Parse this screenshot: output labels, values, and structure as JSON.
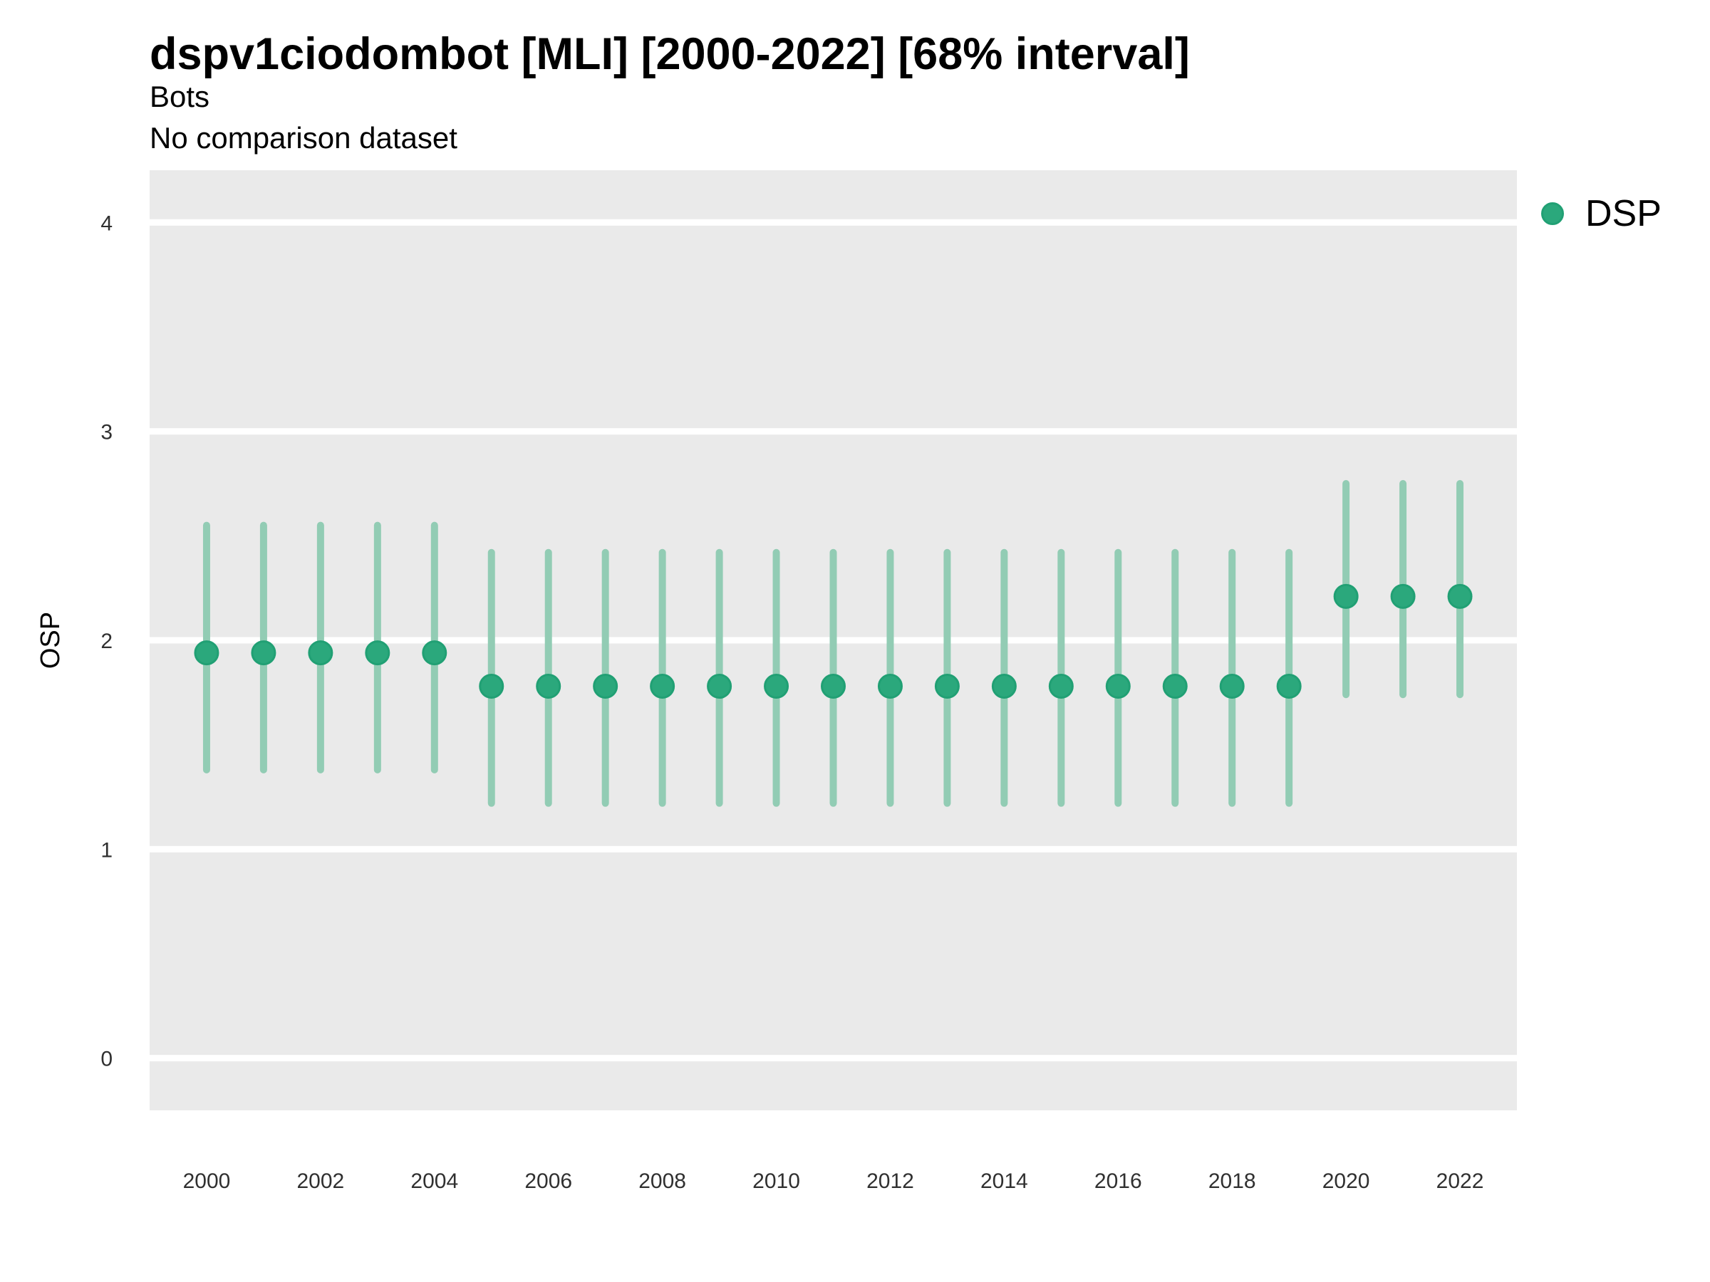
{
  "header": {
    "title": "dspv1ciodombot [MLI] [2000-2022] [68% interval]",
    "subtitle": "Bots",
    "caption": "No comparison dataset"
  },
  "legend": {
    "label": "DSP",
    "color": "#2BA87C"
  },
  "colors": {
    "point_fill": "#2BA87C",
    "point_stroke": "#21A074",
    "interval_line": "#92CCB4",
    "plot_background": "#EAEAEA",
    "gridline": "#FFFFFF",
    "tick_text": "#303030",
    "text": "#000000"
  },
  "chart_data": {
    "type": "scatter",
    "subtype": "pointrange",
    "title": "dspv1ciodombot [MLI] [2000-2022] [68% interval]",
    "subtitle": "Bots",
    "note": "No comparison dataset",
    "interval_label": "68% interval",
    "xlabel": "",
    "ylabel": "OSP",
    "ylim": [
      -0.25,
      4.25
    ],
    "yticks": [
      0,
      1,
      2,
      3,
      4
    ],
    "xticks": [
      "2000",
      "2002",
      "2004",
      "2006",
      "2008",
      "2010",
      "2012",
      "2014",
      "2016",
      "2018",
      "2020",
      "2022"
    ],
    "grid": "horizontal-major-white-on-gray",
    "legend_position": "right",
    "series": [
      {
        "name": "DSP",
        "points": [
          {
            "year": 2000,
            "value": 1.94,
            "lower": 1.38,
            "upper": 2.55
          },
          {
            "year": 2001,
            "value": 1.94,
            "lower": 1.38,
            "upper": 2.55
          },
          {
            "year": 2002,
            "value": 1.94,
            "lower": 1.38,
            "upper": 2.55
          },
          {
            "year": 2003,
            "value": 1.94,
            "lower": 1.38,
            "upper": 2.55
          },
          {
            "year": 2004,
            "value": 1.94,
            "lower": 1.38,
            "upper": 2.55
          },
          {
            "year": 2005,
            "value": 1.78,
            "lower": 1.22,
            "upper": 2.42
          },
          {
            "year": 2006,
            "value": 1.78,
            "lower": 1.22,
            "upper": 2.42
          },
          {
            "year": 2007,
            "value": 1.78,
            "lower": 1.22,
            "upper": 2.42
          },
          {
            "year": 2008,
            "value": 1.78,
            "lower": 1.22,
            "upper": 2.42
          },
          {
            "year": 2009,
            "value": 1.78,
            "lower": 1.22,
            "upper": 2.42
          },
          {
            "year": 2010,
            "value": 1.78,
            "lower": 1.22,
            "upper": 2.42
          },
          {
            "year": 2011,
            "value": 1.78,
            "lower": 1.22,
            "upper": 2.42
          },
          {
            "year": 2012,
            "value": 1.78,
            "lower": 1.22,
            "upper": 2.42
          },
          {
            "year": 2013,
            "value": 1.78,
            "lower": 1.22,
            "upper": 2.42
          },
          {
            "year": 2014,
            "value": 1.78,
            "lower": 1.22,
            "upper": 2.42
          },
          {
            "year": 2015,
            "value": 1.78,
            "lower": 1.22,
            "upper": 2.42
          },
          {
            "year": 2016,
            "value": 1.78,
            "lower": 1.22,
            "upper": 2.42
          },
          {
            "year": 2017,
            "value": 1.78,
            "lower": 1.22,
            "upper": 2.42
          },
          {
            "year": 2018,
            "value": 1.78,
            "lower": 1.22,
            "upper": 2.42
          },
          {
            "year": 2019,
            "value": 1.78,
            "lower": 1.22,
            "upper": 2.42
          },
          {
            "year": 2020,
            "value": 2.21,
            "lower": 1.74,
            "upper": 2.75
          },
          {
            "year": 2021,
            "value": 2.21,
            "lower": 1.74,
            "upper": 2.75
          },
          {
            "year": 2022,
            "value": 2.21,
            "lower": 1.74,
            "upper": 2.75
          }
        ]
      }
    ]
  }
}
